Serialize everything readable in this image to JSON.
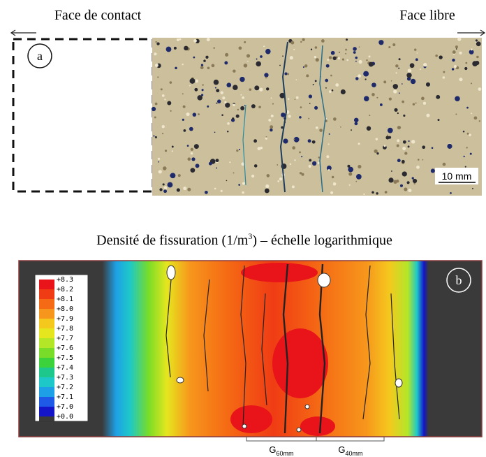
{
  "panel_a": {
    "label_left": "Face de contact",
    "label_right": "Face libre",
    "marker": "a",
    "scale_bar": "10 mm"
  },
  "title": {
    "text": "Densité de fissuration (1/m",
    "superscript": "3",
    "text_end": ") – échelle logarithmique"
  },
  "panel_b": {
    "marker": "b",
    "legend": {
      "labels": [
        "+8.3",
        "+8.2",
        "+8.1",
        "+8.0",
        "+7.9",
        "+7.8",
        "+7.7",
        "+7.6",
        "+7.5",
        "+7.4",
        "+7.3",
        "+7.2",
        "+7.1",
        "+7.0",
        "+0.0"
      ],
      "colors": [
        "#e8141a",
        "#f03c14",
        "#f56a14",
        "#f7961c",
        "#f5c81e",
        "#e6e61e",
        "#b4e628",
        "#78dc28",
        "#3cd23c",
        "#1ec88c",
        "#1ec8c8",
        "#1ea0e6",
        "#1e5ae6",
        "#1414c8"
      ]
    },
    "gauges": [
      {
        "symbol": "G",
        "subscript": "60mm"
      },
      {
        "symbol": "G",
        "subscript": "40mm"
      }
    ]
  }
}
